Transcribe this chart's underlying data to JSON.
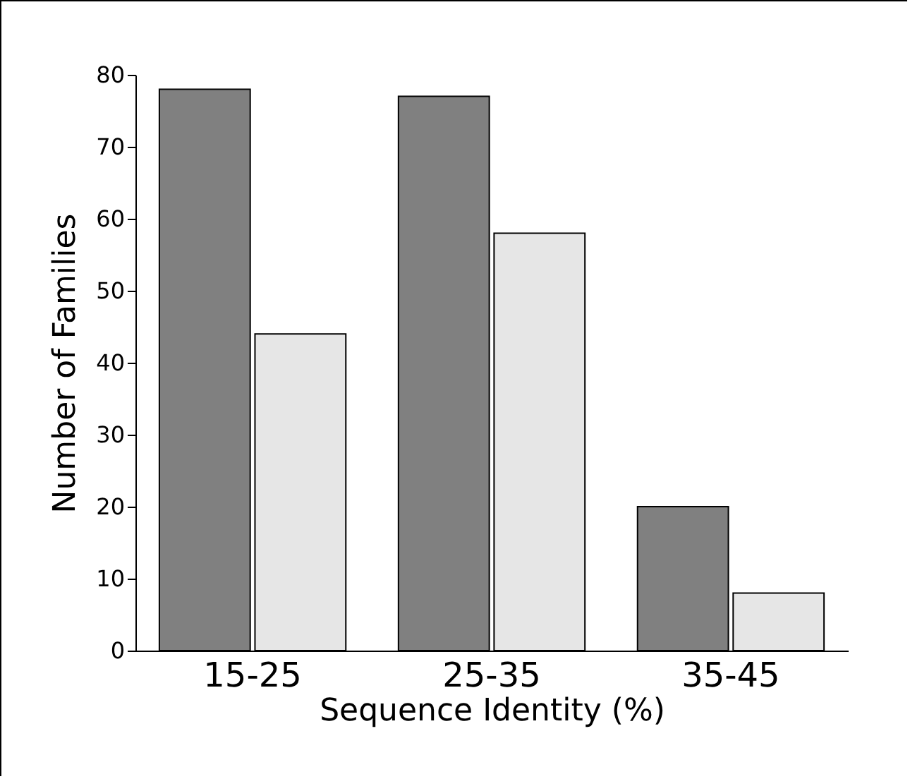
{
  "chart_data": {
    "type": "bar",
    "xlabel": "Sequence Identity (%)",
    "ylabel": "Number of Families",
    "categories": [
      "15-25",
      "25-35",
      "35-45"
    ],
    "series": [
      {
        "color": "#808080",
        "values": [
          78,
          77,
          20
        ]
      },
      {
        "color": "#e6e6e6",
        "values": [
          44,
          58,
          8
        ]
      }
    ],
    "ylim": [
      0,
      80
    ],
    "yticks": [
      0,
      10,
      20,
      30,
      40,
      50,
      60,
      70,
      80
    ],
    "grid": false,
    "legend": false
  }
}
